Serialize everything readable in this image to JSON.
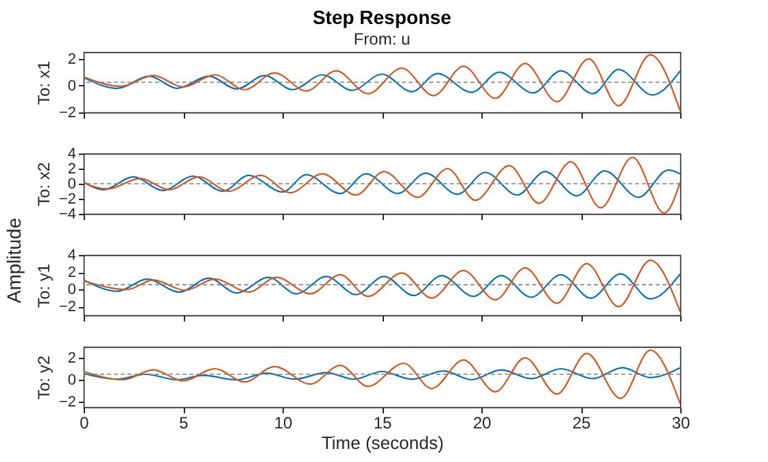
{
  "chart_data": [
    {
      "type": "line",
      "title": "Step Response",
      "subtitle": "From: u",
      "ylabel": "To: x1",
      "annotations": [
        "Amplitude"
      ],
      "xlim": [
        0,
        30
      ],
      "xticks": [
        0,
        5,
        10,
        15,
        20,
        25,
        30
      ],
      "ylim": [
        -2,
        2.5
      ],
      "yticks": [
        -2,
        0,
        2
      ],
      "grid": false,
      "tick_labels": "y",
      "ref_lines": [
        {
          "axis": "y",
          "value": 0.25,
          "color": "#808080",
          "line_style": "dashed"
        }
      ],
      "series": [
        {
          "color": "#0072bd",
          "x": [
            0,
            1.7,
            3.3,
            4.7,
            6.3,
            7.7,
            9.1,
            10.5,
            12.0,
            13.5,
            15.0,
            16.5,
            17.8,
            19.5,
            20.9,
            22.6,
            24.0,
            25.6,
            26.9,
            28.6,
            30
          ],
          "values": [
            0.6,
            -0.2,
            0.7,
            -0.2,
            0.7,
            -0.25,
            0.75,
            -0.3,
            0.8,
            -0.35,
            0.85,
            -0.45,
            0.9,
            -0.5,
            1.0,
            -0.55,
            1.1,
            -0.6,
            1.2,
            -0.7,
            1.1
          ]
        },
        {
          "color": "#d95319",
          "x": [
            0,
            1.9,
            3.5,
            5.0,
            6.6,
            8.1,
            9.6,
            11.2,
            12.7,
            14.3,
            16.0,
            17.6,
            19.1,
            20.7,
            22.2,
            23.8,
            25.4,
            26.9,
            28.5,
            30
          ],
          "values": [
            0.65,
            -0.05,
            0.75,
            -0.1,
            0.8,
            -0.3,
            0.95,
            -0.4,
            1.1,
            -0.6,
            1.3,
            -0.75,
            1.45,
            -0.95,
            1.65,
            -1.2,
            2.0,
            -1.5,
            2.3,
            -1.9
          ]
        }
      ]
    },
    {
      "type": "line",
      "ylabel": "To: x2",
      "xlim": [
        0,
        30
      ],
      "xticks": [
        0,
        5,
        10,
        15,
        20,
        25,
        30
      ],
      "ylim": [
        -4,
        4
      ],
      "yticks": [
        -4,
        -2,
        0,
        2,
        4
      ],
      "grid": false,
      "tick_labels": "y",
      "ref_lines": [
        {
          "axis": "y",
          "value": 0,
          "color": "#808080",
          "line_style": "dashed"
        }
      ],
      "series": [
        {
          "color": "#0072bd",
          "x": [
            0,
            1.0,
            2.5,
            4.0,
            5.5,
            7.0,
            8.3,
            10.0,
            11.2,
            12.9,
            14.2,
            15.8,
            17.2,
            18.8,
            20.2,
            21.8,
            23.2,
            24.8,
            26.2,
            27.9,
            29.4,
            30
          ],
          "values": [
            0.2,
            -0.8,
            0.9,
            -0.9,
            1.0,
            -1.0,
            1.1,
            -1.1,
            1.2,
            -1.3,
            1.3,
            -1.3,
            1.4,
            -1.4,
            1.5,
            -1.5,
            1.6,
            -1.6,
            1.7,
            -1.8,
            1.8,
            1.3
          ]
        },
        {
          "color": "#d95319",
          "x": [
            0,
            1.2,
            2.85,
            4.3,
            5.8,
            7.3,
            8.9,
            10.4,
            12.0,
            13.7,
            15.1,
            16.8,
            18.3,
            19.7,
            21.4,
            22.9,
            24.5,
            26.0,
            27.6,
            29.2,
            30
          ],
          "values": [
            0.1,
            -0.7,
            0.7,
            -0.8,
            0.9,
            -1.0,
            1.1,
            -1.2,
            1.3,
            -1.5,
            1.6,
            -1.8,
            2.0,
            -2.2,
            2.4,
            -2.6,
            2.9,
            -3.2,
            3.5,
            -3.9,
            0.2
          ]
        }
      ]
    },
    {
      "type": "line",
      "ylabel": "To: y1",
      "xlim": [
        0,
        30
      ],
      "xticks": [
        0,
        5,
        10,
        15,
        20,
        25,
        30
      ],
      "ylim": [
        -3,
        4
      ],
      "yticks": [
        -2,
        0,
        2,
        4
      ],
      "grid": false,
      "tick_labels": "y",
      "ref_lines": [
        {
          "axis": "y",
          "value": 0.55,
          "color": "#808080",
          "line_style": "dashed"
        }
      ],
      "series": [
        {
          "color": "#0072bd",
          "x": [
            0,
            1.7,
            3.2,
            4.8,
            6.3,
            7.7,
            9.3,
            10.7,
            12.2,
            13.7,
            15.1,
            16.6,
            18.0,
            19.6,
            21.0,
            22.5,
            24.0,
            25.5,
            27.0,
            28.5,
            30
          ],
          "values": [
            1.1,
            -0.2,
            1.2,
            -0.3,
            1.3,
            -0.4,
            1.4,
            -0.5,
            1.5,
            -0.6,
            1.5,
            -0.7,
            1.6,
            -0.8,
            1.6,
            -0.9,
            1.7,
            -1.0,
            1.8,
            -1.1,
            1.8
          ]
        },
        {
          "color": "#d95319",
          "x": [
            0,
            2.2,
            3.5,
            5.1,
            6.6,
            8.3,
            9.7,
            11.4,
            12.9,
            14.3,
            16.0,
            17.5,
            19.1,
            20.7,
            22.2,
            23.8,
            25.3,
            26.9,
            28.5,
            30
          ],
          "values": [
            1.0,
            0.0,
            1.1,
            -0.1,
            1.2,
            -0.3,
            1.4,
            -0.5,
            1.7,
            -0.8,
            1.9,
            -1.0,
            2.2,
            -1.2,
            2.5,
            -1.6,
            3.0,
            -2.0,
            3.4,
            -2.6
          ]
        }
      ]
    },
    {
      "type": "line",
      "ylabel": "To: y2",
      "xlabel": "Time (seconds)",
      "xlim": [
        0,
        30
      ],
      "xticks": [
        0,
        5,
        10,
        15,
        20,
        25,
        30
      ],
      "ylim": [
        -2.5,
        3
      ],
      "yticks": [
        -2,
        0,
        2
      ],
      "grid": false,
      "ref_lines": [
        {
          "axis": "y",
          "value": 0.5,
          "color": "#808080",
          "line_style": "dashed"
        }
      ],
      "series": [
        {
          "color": "#0072bd",
          "x": [
            0,
            1.7,
            3.1,
            4.7,
            6.0,
            7.7,
            9.2,
            10.6,
            12.2,
            13.6,
            15.0,
            16.5,
            18.1,
            19.5,
            21.0,
            22.5,
            24.0,
            25.6,
            27.1,
            28.5,
            30
          ],
          "values": [
            0.55,
            0.05,
            0.5,
            0.0,
            0.4,
            0.0,
            0.6,
            0.05,
            0.65,
            0.05,
            0.75,
            0.05,
            0.8,
            0.0,
            0.9,
            0.1,
            1.0,
            0.1,
            1.1,
            0.2,
            1.1
          ]
        },
        {
          "color": "#d95319",
          "x": [
            0,
            2.0,
            3.5,
            5.0,
            6.6,
            8.1,
            9.6,
            11.4,
            12.9,
            14.3,
            16.1,
            17.5,
            19.1,
            20.7,
            22.2,
            23.8,
            25.3,
            27.0,
            28.5,
            30
          ],
          "values": [
            0.75,
            0.0,
            0.9,
            -0.1,
            1.0,
            -0.2,
            1.2,
            -0.4,
            1.3,
            -0.6,
            1.5,
            -0.8,
            1.8,
            -1.1,
            2.0,
            -1.3,
            2.4,
            -1.7,
            2.7,
            -2.2
          ]
        }
      ]
    }
  ]
}
